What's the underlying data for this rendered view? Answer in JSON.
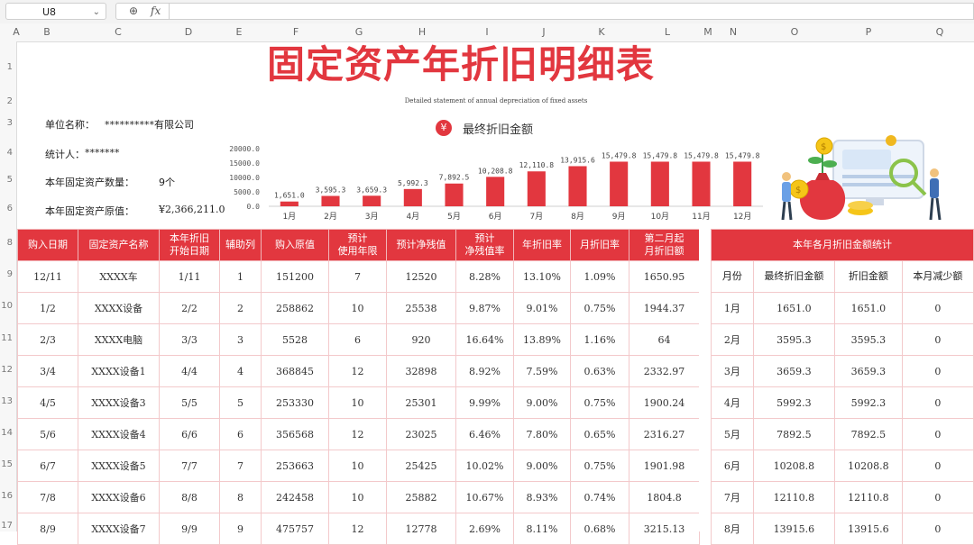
{
  "formula_bar": {
    "name_box": "U8",
    "zoom_icon": "zoom-icon",
    "fx_label": "fx",
    "formula": ""
  },
  "columns": [
    "A",
    "B",
    "C",
    "D",
    "E",
    "F",
    "G",
    "H",
    "I",
    "J",
    "K",
    "L",
    "M",
    "N",
    "O",
    "P",
    "Q"
  ],
  "rows": [
    "1",
    "2",
    "3",
    "4",
    "5",
    "6",
    "8",
    "9",
    "10",
    "11",
    "12",
    "13",
    "14",
    "15",
    "16",
    "17"
  ],
  "title": "固定资产年折旧明细表",
  "subtitle": "Detailed statement of annual depreciation of fixed assets",
  "info": {
    "unit_label": "单位名称：",
    "unit_value": "**********有限公司",
    "stat_label": "统计人：",
    "stat_value": "*******",
    "count_label": "本年固定资产数量：",
    "count_value": "9个",
    "orig_label": "本年固定资产原值：",
    "orig_value": "¥2,366,211.0"
  },
  "chart_title": "最终折旧金额",
  "chart_data": {
    "type": "bar",
    "title": "最终折旧金额",
    "categories": [
      "1月",
      "2月",
      "3月",
      "4月",
      "5月",
      "6月",
      "7月",
      "8月",
      "9月",
      "10月",
      "11月",
      "12月"
    ],
    "values": [
      1651.0,
      3595.3,
      3659.3,
      5992.3,
      7892.5,
      10208.8,
      12110.8,
      13915.6,
      15479.8,
      15479.8,
      15479.8,
      15479.8
    ],
    "labels": [
      "1,651.0",
      "3,595.3",
      "3,659.3",
      "5,992.3",
      "7,892.5",
      "10,208.8",
      "12,110.8",
      "13,915.6",
      "15,479.8",
      "15,479.8",
      "15,479.8",
      "15,479.8"
    ],
    "yticks": [
      "20000.0",
      "15000.0",
      "10000.0",
      "5000.0",
      "0.0"
    ],
    "ytick_values": [
      20000,
      15000,
      10000,
      5000,
      0
    ],
    "ylim": [
      0,
      20000
    ],
    "color": "#e2373f"
  },
  "main_table": {
    "headers": [
      "购入日期",
      "固定资产名称",
      "本年折旧\n开始日期",
      "辅助列",
      "购入原值",
      "预计\n使用年限",
      "预计净残值",
      "预计\n净残值率",
      "年折旧率",
      "月折旧率",
      "第二月起\n月折旧额"
    ],
    "rows": [
      [
        "12/11",
        "XXXX车",
        "1/11",
        "1",
        "151200",
        "7",
        "12520",
        "8.28%",
        "13.10%",
        "1.09%",
        "1650.95"
      ],
      [
        "1/2",
        "XXXX设备",
        "2/2",
        "2",
        "258862",
        "10",
        "25538",
        "9.87%",
        "9.01%",
        "0.75%",
        "1944.37"
      ],
      [
        "2/3",
        "XXXX电脑",
        "3/3",
        "3",
        "5528",
        "6",
        "920",
        "16.64%",
        "13.89%",
        "1.16%",
        "64"
      ],
      [
        "3/4",
        "XXXX设备1",
        "4/4",
        "4",
        "368845",
        "12",
        "32898",
        "8.92%",
        "7.59%",
        "0.63%",
        "2332.97"
      ],
      [
        "4/5",
        "XXXX设备3",
        "5/5",
        "5",
        "253330",
        "10",
        "25301",
        "9.99%",
        "9.00%",
        "0.75%",
        "1900.24"
      ],
      [
        "5/6",
        "XXXX设备4",
        "6/6",
        "6",
        "356568",
        "12",
        "23025",
        "6.46%",
        "7.80%",
        "0.65%",
        "2316.27"
      ],
      [
        "6/7",
        "XXXX设备5",
        "7/7",
        "7",
        "253663",
        "10",
        "25425",
        "10.02%",
        "9.00%",
        "0.75%",
        "1901.98"
      ],
      [
        "7/8",
        "XXXX设备6",
        "8/8",
        "8",
        "242458",
        "10",
        "25882",
        "10.67%",
        "8.93%",
        "0.74%",
        "1804.8"
      ],
      [
        "8/9",
        "XXXX设备7",
        "9/9",
        "9",
        "475757",
        "12",
        "12778",
        "2.69%",
        "8.11%",
        "0.68%",
        "3215.13"
      ]
    ]
  },
  "side_table": {
    "title": "本年各月折旧金额统计",
    "headers": [
      "月份",
      "最终折旧金额",
      "折旧金额",
      "本月减少额"
    ],
    "rows": [
      [
        "1月",
        "1651.0",
        "1651.0",
        "0"
      ],
      [
        "2月",
        "3595.3",
        "3595.3",
        "0"
      ],
      [
        "3月",
        "3659.3",
        "3659.3",
        "0"
      ],
      [
        "4月",
        "5992.3",
        "5992.3",
        "0"
      ],
      [
        "5月",
        "7892.5",
        "7892.5",
        "0"
      ],
      [
        "6月",
        "10208.8",
        "10208.8",
        "0"
      ],
      [
        "7月",
        "12110.8",
        "12110.8",
        "0"
      ],
      [
        "8月",
        "13915.6",
        "13915.6",
        "0"
      ]
    ]
  }
}
